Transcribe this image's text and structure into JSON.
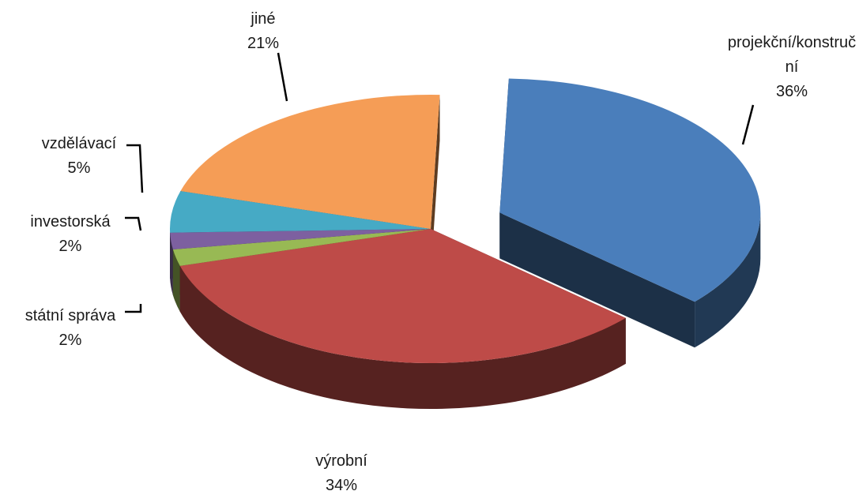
{
  "chart_data": {
    "type": "pie",
    "title": "",
    "unit": "%",
    "slices": [
      {
        "label_lines": [
          "projekční/konstruč",
          "ní"
        ],
        "value": 36,
        "value_label": "36%",
        "color": "#4A7EBB",
        "exploded": true
      },
      {
        "label_lines": [
          "výrobní"
        ],
        "value": 34,
        "value_label": "34%",
        "color": "#BE4B48",
        "exploded": false
      },
      {
        "label_lines": [
          "státní správa"
        ],
        "value": 2,
        "value_label": "2%",
        "color": "#98B954",
        "exploded": false
      },
      {
        "label_lines": [
          "investorská"
        ],
        "value": 2,
        "value_label": "2%",
        "color": "#7D60A0",
        "exploded": false
      },
      {
        "label_lines": [
          "vzdělávací"
        ],
        "value": 5,
        "value_label": "5%",
        "color": "#46AAC5",
        "exploded": false
      },
      {
        "label_lines": [
          "jiné"
        ],
        "value": 21,
        "value_label": "21%",
        "color": "#F59D56",
        "exploded": false
      }
    ],
    "style": "3d-exploded-pie",
    "legend": "none",
    "data_labels": "outside-with-leader-lines"
  }
}
